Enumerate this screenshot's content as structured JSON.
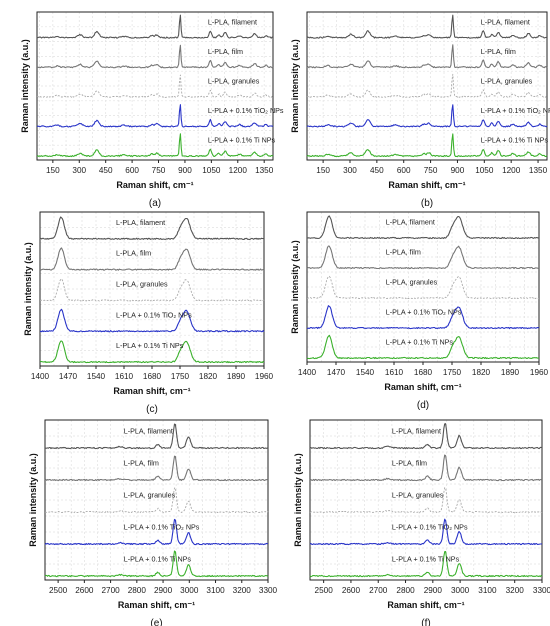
{
  "figure": {
    "panels": [
      {
        "letter": "(a)"
      },
      {
        "letter": "(b)"
      },
      {
        "letter": "(c)"
      },
      {
        "letter": "(d)"
      },
      {
        "letter": "(e)"
      },
      {
        "letter": "(f)"
      }
    ]
  },
  "chart_data": [
    {
      "type": "line",
      "panel": "(a)",
      "xlabel": "Raman shift, cm⁻¹",
      "ylabel": "Raman intensity (a.u.)",
      "xlim": [
        60,
        1400
      ],
      "xticks": [
        150,
        300,
        450,
        600,
        750,
        900,
        1050,
        1200,
        1350
      ],
      "grid": true,
      "series": [
        {
          "name": "L-PLA, filament",
          "color": "#555555",
          "dashed": false,
          "label_x": 1030
        },
        {
          "name": "L-PLA, film",
          "color": "#777777",
          "dashed": false,
          "label_x": 1030
        },
        {
          "name": "L-PLA, granules",
          "color": "#aaaaaa",
          "dashed": true,
          "label_x": 1030
        },
        {
          "name": "L-PLA + 0.1% TiO₂ NPs",
          "color": "#2a35c8",
          "dashed": false,
          "label_x": 1030
        },
        {
          "name": "L-PLA + 0.1% Ti NPs",
          "color": "#3cb12d",
          "dashed": false,
          "label_x": 1030
        }
      ],
      "peaks": [
        {
          "x": 873,
          "h": 1.0,
          "w": 6
        },
        {
          "x": 1044,
          "h": 0.28,
          "w": 10
        },
        {
          "x": 1128,
          "h": 0.22,
          "w": 12
        },
        {
          "x": 1092,
          "h": 0.12,
          "w": 10
        },
        {
          "x": 1296,
          "h": 0.16,
          "w": 14
        },
        {
          "x": 400,
          "h": 0.26,
          "w": 18
        },
        {
          "x": 305,
          "h": 0.12,
          "w": 18
        },
        {
          "x": 740,
          "h": 0.12,
          "w": 14
        },
        {
          "x": 712,
          "h": 0.09,
          "w": 12
        },
        {
          "x": 1210,
          "h": 0.08,
          "w": 14
        },
        {
          "x": 1360,
          "h": 0.08,
          "w": 12
        },
        {
          "x": 175,
          "h": 0.06,
          "w": 16
        },
        {
          "x": 555,
          "h": 0.05,
          "w": 20
        }
      ]
    },
    {
      "type": "line",
      "panel": "(b)",
      "xlabel": "Raman shift, cm⁻¹",
      "ylabel": "Raman intensity (a.u.)",
      "xlim": [
        60,
        1400
      ],
      "xticks": [
        150,
        300,
        450,
        600,
        750,
        900,
        1050,
        1200,
        1350
      ],
      "grid": true,
      "series": [
        {
          "name": "L-PLA, filament",
          "color": "#555555",
          "dashed": false,
          "label_x": 1030
        },
        {
          "name": "L-PLA, film",
          "color": "#777777",
          "dashed": false,
          "label_x": 1030
        },
        {
          "name": "L-PLA, granules",
          "color": "#aaaaaa",
          "dashed": true,
          "label_x": 1030
        },
        {
          "name": "L-PLA + 0.1% TiO₂ NPs",
          "color": "#2a35c8",
          "dashed": false,
          "label_x": 1030
        },
        {
          "name": "L-PLA + 0.1% Ti NPs",
          "color": "#3cb12d",
          "dashed": false,
          "label_x": 1030
        }
      ],
      "peaks": [
        {
          "x": 873,
          "h": 1.0,
          "w": 6
        },
        {
          "x": 1044,
          "h": 0.3,
          "w": 10
        },
        {
          "x": 1128,
          "h": 0.24,
          "w": 12
        },
        {
          "x": 1092,
          "h": 0.14,
          "w": 10
        },
        {
          "x": 1296,
          "h": 0.18,
          "w": 14
        },
        {
          "x": 400,
          "h": 0.28,
          "w": 18
        },
        {
          "x": 305,
          "h": 0.14,
          "w": 18
        },
        {
          "x": 740,
          "h": 0.14,
          "w": 14
        },
        {
          "x": 712,
          "h": 0.1,
          "w": 12
        },
        {
          "x": 1210,
          "h": 0.1,
          "w": 14
        },
        {
          "x": 1360,
          "h": 0.09,
          "w": 12
        },
        {
          "x": 175,
          "h": 0.07,
          "w": 16
        },
        {
          "x": 555,
          "h": 0.06,
          "w": 20
        }
      ]
    },
    {
      "type": "line",
      "panel": "(c)",
      "xlabel": "Raman shift, cm⁻¹",
      "ylabel": "Raman intensity (a.u.)",
      "xlim": [
        1400,
        1960
      ],
      "xticks": [
        1400,
        1470,
        1540,
        1610,
        1680,
        1750,
        1820,
        1890,
        1960
      ],
      "grid": true,
      "series": [
        {
          "name": "L-PLA, filament",
          "color": "#555555",
          "dashed": false,
          "label_x": 1590
        },
        {
          "name": "L-PLA, film",
          "color": "#777777",
          "dashed": false,
          "label_x": 1590
        },
        {
          "name": "L-PLA, granules",
          "color": "#aaaaaa",
          "dashed": true,
          "label_x": 1590
        },
        {
          "name": "L-PLA + 0.1% TiO₂ NPs",
          "color": "#2a35c8",
          "dashed": false,
          "label_x": 1590
        },
        {
          "name": "L-PLA + 0.1% Ti NPs",
          "color": "#3cb12d",
          "dashed": false,
          "label_x": 1590
        }
      ],
      "peaks": [
        {
          "x": 1453,
          "h": 0.9,
          "w": 11
        },
        {
          "x": 1766,
          "h": 0.85,
          "w": 13
        },
        {
          "x": 1750,
          "h": 0.3,
          "w": 9
        }
      ]
    },
    {
      "type": "line",
      "panel": "(d)",
      "xlabel": "Raman shift, cm⁻¹",
      "ylabel": "Raman intensity (a.u.)",
      "xlim": [
        1400,
        1960
      ],
      "xticks": [
        1400,
        1470,
        1540,
        1610,
        1680,
        1750,
        1820,
        1890,
        1960
      ],
      "grid": true,
      "series": [
        {
          "name": "L-PLA, filament",
          "color": "#555555",
          "dashed": false,
          "label_x": 1590
        },
        {
          "name": "L-PLA, film",
          "color": "#777777",
          "dashed": false,
          "label_x": 1590
        },
        {
          "name": "L-PLA, granules",
          "color": "#aaaaaa",
          "dashed": true,
          "label_x": 1590
        },
        {
          "name": "L-PLA + 0.1% TiO₂ NPs",
          "color": "#2a35c8",
          "dashed": false,
          "label_x": 1590
        },
        {
          "name": "L-PLA + 0.1% Ti NPs",
          "color": "#3cb12d",
          "dashed": false,
          "label_x": 1590
        }
      ],
      "peaks": [
        {
          "x": 1453,
          "h": 0.95,
          "w": 11
        },
        {
          "x": 1766,
          "h": 0.9,
          "w": 13
        },
        {
          "x": 1750,
          "h": 0.3,
          "w": 9
        }
      ]
    },
    {
      "type": "line",
      "panel": "(e)",
      "xlabel": "Raman shift, cm⁻¹",
      "ylabel": "Raman intensity (a.u.)",
      "xlim": [
        2450,
        3300
      ],
      "xticks": [
        2500,
        2600,
        2700,
        2800,
        2900,
        3000,
        3100,
        3200,
        3300
      ],
      "grid": true,
      "series": [
        {
          "name": "L-PLA, filament",
          "color": "#555555",
          "dashed": false,
          "label_x": 2750
        },
        {
          "name": "L-PLA, film",
          "color": "#777777",
          "dashed": false,
          "label_x": 2750
        },
        {
          "name": "L-PLA, granules",
          "color": "#aaaaaa",
          "dashed": true,
          "label_x": 2750
        },
        {
          "name": "L-PLA + 0.1% TiO₂ NPs",
          "color": "#2a35c8",
          "dashed": false,
          "label_x": 2750
        },
        {
          "name": "L-PLA + 0.1% Ti NPs",
          "color": "#3cb12d",
          "dashed": false,
          "label_x": 2750
        }
      ],
      "peaks": [
        {
          "x": 2945,
          "h": 1.0,
          "w": 9
        },
        {
          "x": 2997,
          "h": 0.45,
          "w": 11
        },
        {
          "x": 2880,
          "h": 0.14,
          "w": 10
        },
        {
          "x": 2735,
          "h": 0.05,
          "w": 16
        }
      ]
    },
    {
      "type": "line",
      "panel": "(f)",
      "xlabel": "Raman shift, cm⁻¹",
      "ylabel": "Raman intensity (a.u.)",
      "xlim": [
        2450,
        3300
      ],
      "xticks": [
        2500,
        2600,
        2700,
        2800,
        2900,
        3000,
        3100,
        3200,
        3300
      ],
      "grid": true,
      "series": [
        {
          "name": "L-PLA, filament",
          "color": "#555555",
          "dashed": false,
          "label_x": 2750
        },
        {
          "name": "L-PLA, film",
          "color": "#777777",
          "dashed": false,
          "label_x": 2750
        },
        {
          "name": "L-PLA, granules",
          "color": "#aaaaaa",
          "dashed": true,
          "label_x": 2750
        },
        {
          "name": "L-PLA + 0.1% TiO₂ NPs",
          "color": "#2a35c8",
          "dashed": false,
          "label_x": 2750
        },
        {
          "name": "L-PLA + 0.1% Ti NPs",
          "color": "#3cb12d",
          "dashed": false,
          "label_x": 2750
        }
      ],
      "peaks": [
        {
          "x": 2945,
          "h": 1.0,
          "w": 9
        },
        {
          "x": 2997,
          "h": 0.5,
          "w": 11
        },
        {
          "x": 2880,
          "h": 0.15,
          "w": 10
        },
        {
          "x": 2735,
          "h": 0.05,
          "w": 16
        }
      ]
    }
  ]
}
